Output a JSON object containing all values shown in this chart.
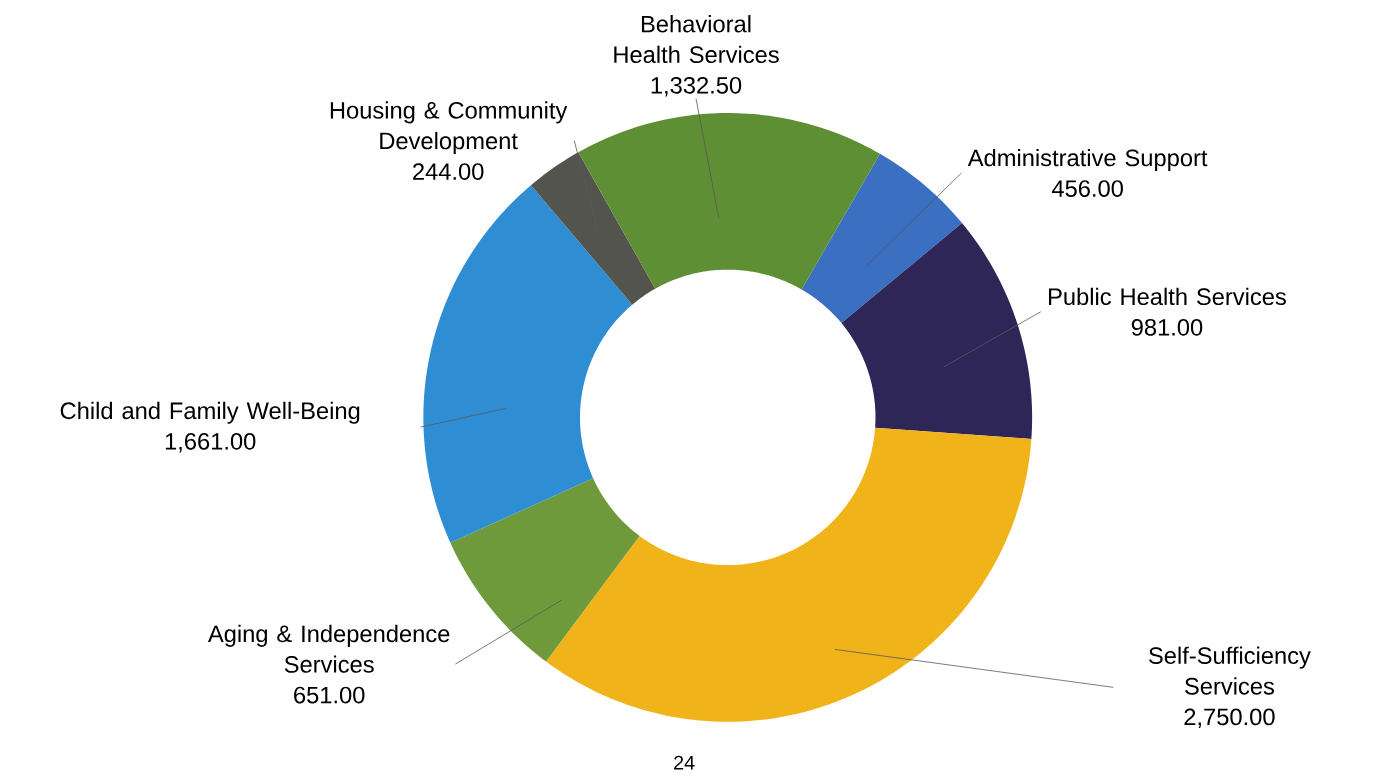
{
  "chart_data": {
    "type": "donut",
    "categories": [
      "Administrative Support",
      "Public Health Services",
      "Self-Sufficiency Services",
      "Aging & Independence Services",
      "Child and Family Well-Being",
      "Housing & Community Development",
      "Behavioral Health Services"
    ],
    "values": [
      456.0,
      981.0,
      2750.0,
      651.0,
      1661.0,
      244.0,
      1332.5
    ],
    "value_labels": [
      "456.00",
      "981.00",
      "2,750.00",
      "651.00",
      "1,661.00",
      "244.00",
      "1,332.50"
    ],
    "colors": [
      "#3b6fc2",
      "#2e2657",
      "#f0b31a",
      "#6e9a3b",
      "#2f8dd3",
      "#54544f",
      "#5f8f35"
    ],
    "annotations": [
      "24"
    ]
  }
}
